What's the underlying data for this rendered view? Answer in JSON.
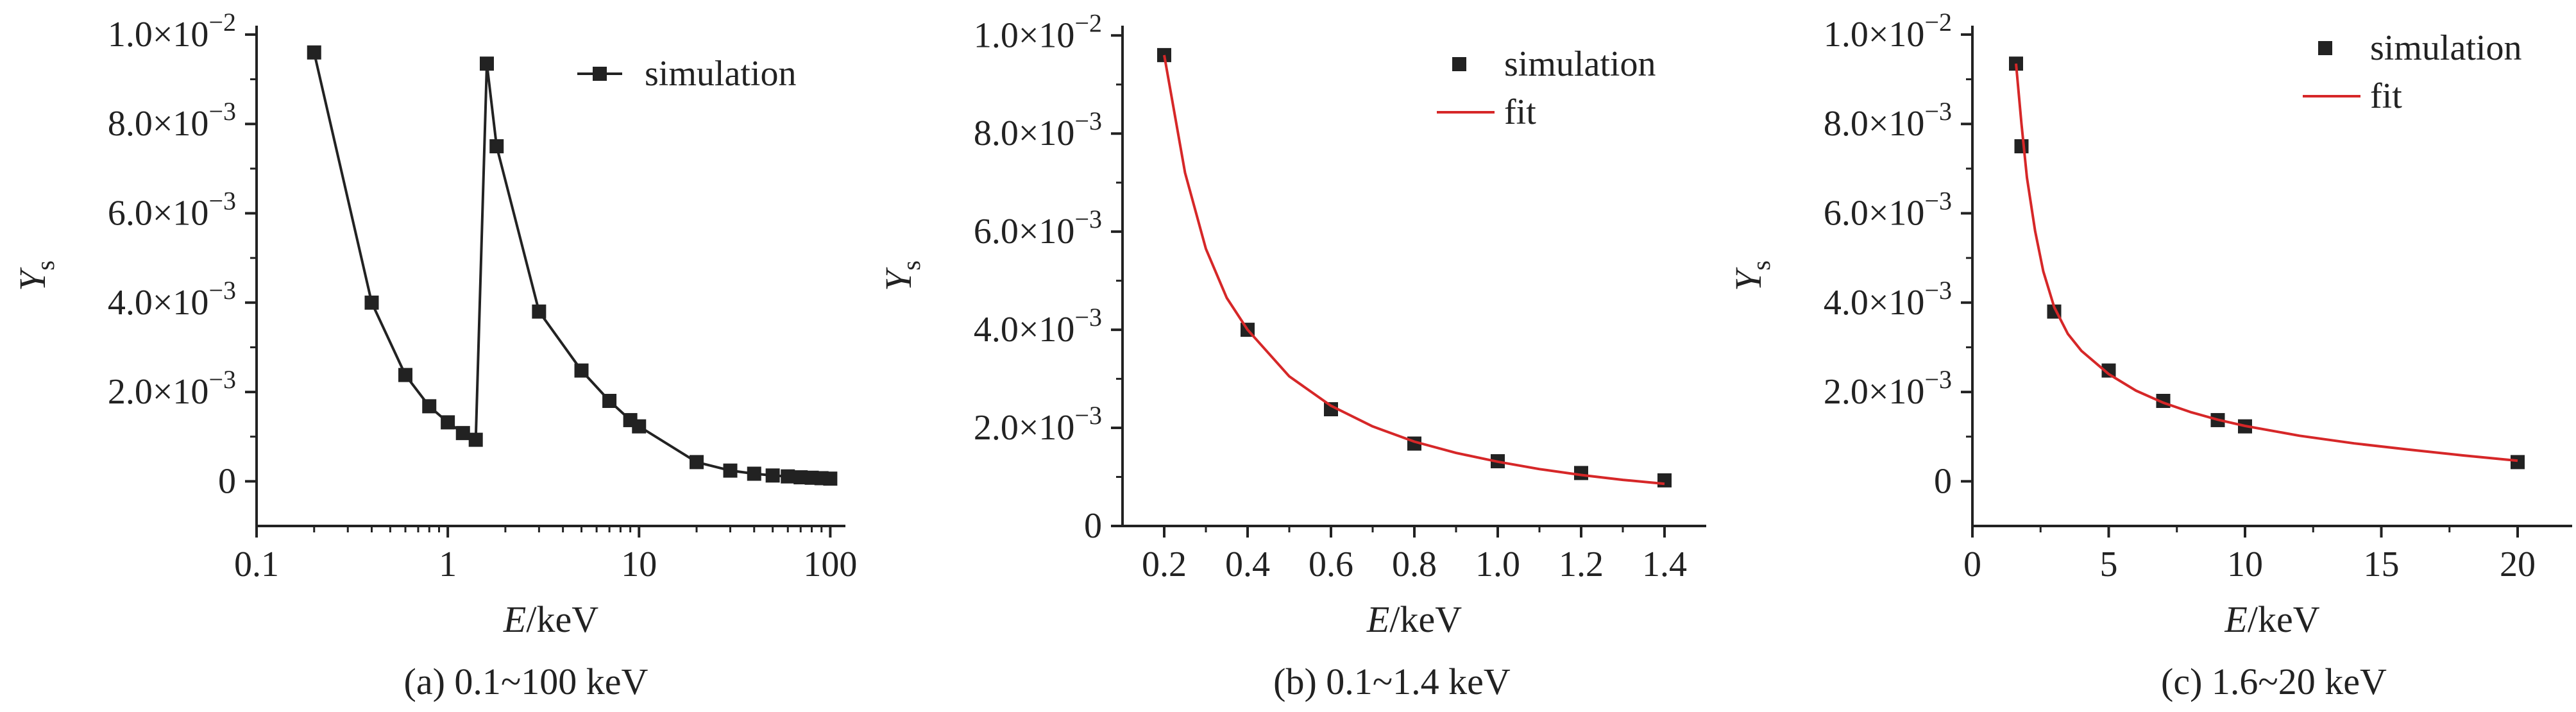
{
  "chart_data": [
    {
      "type": "line",
      "xscale": "log",
      "caption": "(a) 0.1~100 keV",
      "xlabel_italic": "E",
      "xlabel_unit": "/keV",
      "ylabel_main": "Y",
      "ylabel_sub": "s",
      "xlim": [
        0.1,
        120
      ],
      "ylim": [
        -0.001,
        0.0102
      ],
      "xticks": [
        0.1,
        1,
        10,
        100
      ],
      "xtick_labels": [
        "0.1",
        "1",
        "10",
        "100"
      ],
      "yticks": [
        0,
        0.002,
        0.004,
        0.006,
        0.008,
        0.01
      ],
      "ytick_labels": [
        {
          "text": "0",
          "base": "",
          "exp": ""
        },
        {
          "text": "",
          "base": "2.0×10",
          "exp": "−3"
        },
        {
          "text": "",
          "base": "4.0×10",
          "exp": "−3"
        },
        {
          "text": "",
          "base": "6.0×10",
          "exp": "−3"
        },
        {
          "text": "",
          "base": "8.0×10",
          "exp": "−3"
        },
        {
          "text": "",
          "base": "1.0×10",
          "exp": "−2"
        }
      ],
      "legend": {
        "position": "top-right",
        "entries": [
          {
            "label": "simulation",
            "style": "line-marker"
          }
        ]
      },
      "series": [
        {
          "name": "simulation",
          "color": "#222222",
          "style": "line-marker",
          "x": [
            0.2,
            0.4,
            0.6,
            0.8,
            1.0,
            1.2,
            1.4,
            1.6,
            1.8,
            3,
            5,
            7,
            9,
            10,
            20,
            30,
            40,
            50,
            60,
            70,
            80,
            90,
            100
          ],
          "y": [
            0.0096,
            0.004,
            0.00238,
            0.00168,
            0.00132,
            0.00108,
            0.00093,
            0.00935,
            0.0075,
            0.0038,
            0.00248,
            0.0018,
            0.00137,
            0.00123,
            0.00043,
            0.00024,
            0.00017,
            0.00013,
            0.00011,
            9e-05,
            8e-05,
            7e-05,
            6e-05
          ]
        }
      ]
    },
    {
      "type": "scatter",
      "xscale": "linear",
      "caption": "(b) 0.1~1.4 keV",
      "xlabel_italic": "E",
      "xlabel_unit": "/keV",
      "ylabel_main": "Y",
      "ylabel_sub": "s",
      "xlim": [
        0.1,
        1.5
      ],
      "ylim": [
        0,
        0.0102
      ],
      "xticks": [
        0.2,
        0.4,
        0.6,
        0.8,
        1.0,
        1.2,
        1.4
      ],
      "xtick_labels": [
        "0.2",
        "0.4",
        "0.6",
        "0.8",
        "1.0",
        "1.2",
        "1.4"
      ],
      "yticks": [
        0,
        0.002,
        0.004,
        0.006,
        0.008,
        0.01
      ],
      "ytick_labels": [
        {
          "text": "0",
          "base": "",
          "exp": ""
        },
        {
          "text": "",
          "base": "2.0×10",
          "exp": "−3"
        },
        {
          "text": "",
          "base": "4.0×10",
          "exp": "−3"
        },
        {
          "text": "",
          "base": "6.0×10",
          "exp": "−3"
        },
        {
          "text": "",
          "base": "8.0×10",
          "exp": "−3"
        },
        {
          "text": "",
          "base": "1.0×10",
          "exp": "−2"
        }
      ],
      "legend": {
        "position": "top-right",
        "entries": [
          {
            "label": "simulation",
            "style": "marker"
          },
          {
            "label": "fit",
            "style": "line",
            "color": "#d62728"
          }
        ]
      },
      "series": [
        {
          "name": "simulation",
          "color": "#222222",
          "style": "marker",
          "x": [
            0.2,
            0.4,
            0.6,
            0.8,
            1.0,
            1.2,
            1.4
          ],
          "y": [
            0.0096,
            0.004,
            0.00238,
            0.00168,
            0.00132,
            0.00108,
            0.00093
          ]
        },
        {
          "name": "fit",
          "color": "#d62728",
          "style": "line",
          "x": [
            0.2,
            0.25,
            0.3,
            0.35,
            0.4,
            0.5,
            0.6,
            0.7,
            0.8,
            0.9,
            1.0,
            1.1,
            1.2,
            1.3,
            1.4
          ],
          "y": [
            0.0096,
            0.0072,
            0.00565,
            0.00465,
            0.004,
            0.00305,
            0.00245,
            0.00203,
            0.00172,
            0.00149,
            0.00131,
            0.00116,
            0.00104,
            0.00094,
            0.00086
          ]
        }
      ]
    },
    {
      "type": "scatter",
      "xscale": "linear",
      "caption": "(c) 1.6~20 keV",
      "xlabel_italic": "E",
      "xlabel_unit": "/keV",
      "ylabel_main": "Y",
      "ylabel_sub": "s",
      "xlim": [
        0,
        22
      ],
      "ylim": [
        -0.001,
        0.0102
      ],
      "xticks": [
        0,
        5,
        10,
        15,
        20
      ],
      "xtick_labels": [
        "0",
        "5",
        "10",
        "15",
        "20"
      ],
      "yticks": [
        0,
        0.002,
        0.004,
        0.006,
        0.008,
        0.01
      ],
      "ytick_labels": [
        {
          "text": "0",
          "base": "",
          "exp": ""
        },
        {
          "text": "",
          "base": "2.0×10",
          "exp": "−3"
        },
        {
          "text": "",
          "base": "4.0×10",
          "exp": "−3"
        },
        {
          "text": "",
          "base": "6.0×10",
          "exp": "−3"
        },
        {
          "text": "",
          "base": "8.0×10",
          "exp": "−3"
        },
        {
          "text": "",
          "base": "1.0×10",
          "exp": "−2"
        }
      ],
      "legend": {
        "position": "top-right",
        "entries": [
          {
            "label": "simulation",
            "style": "marker"
          },
          {
            "label": "fit",
            "style": "line",
            "color": "#d62728"
          }
        ]
      },
      "series": [
        {
          "name": "simulation",
          "color": "#222222",
          "style": "marker",
          "x": [
            1.6,
            1.8,
            3,
            5,
            7,
            9,
            10,
            20
          ],
          "y": [
            0.00935,
            0.0075,
            0.0038,
            0.00248,
            0.0018,
            0.00137,
            0.00123,
            0.00043
          ]
        },
        {
          "name": "fit",
          "color": "#d62728",
          "style": "line",
          "x": [
            1.6,
            1.8,
            2.0,
            2.3,
            2.6,
            3.0,
            3.5,
            4,
            5,
            6,
            7,
            8,
            9,
            10,
            12,
            14,
            16,
            18,
            20
          ],
          "y": [
            0.00935,
            0.008,
            0.0068,
            0.0056,
            0.0047,
            0.0039,
            0.0033,
            0.00292,
            0.0024,
            0.00203,
            0.00176,
            0.00155,
            0.00138,
            0.00124,
            0.00102,
            0.00085,
            0.00071,
            0.00058,
            0.00046
          ]
        }
      ]
    }
  ]
}
